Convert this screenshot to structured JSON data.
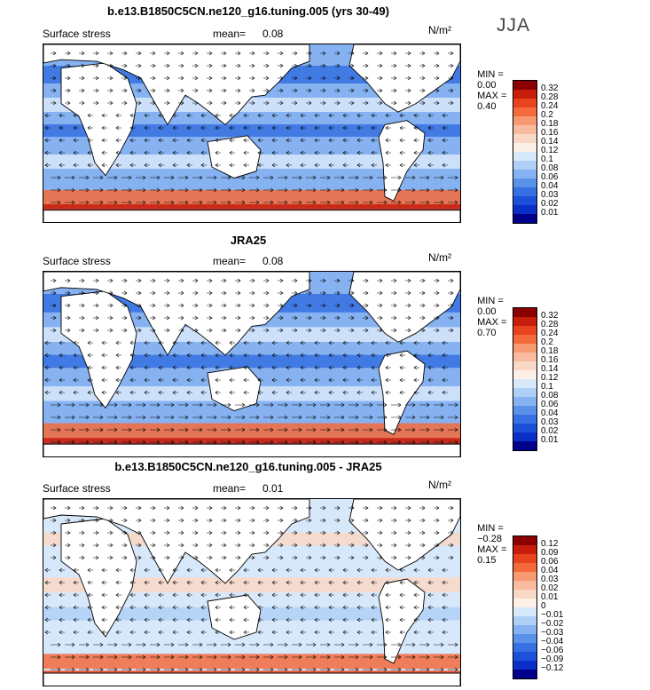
{
  "season": "JJA",
  "units_label": "N/m²",
  "panels": [
    {
      "title": "b.e13.B1850C5CN.ne120_g16.tuning.005 (yrs 30-49)",
      "variable": "Surface stress",
      "mean_label": "mean=",
      "mean_value": "0.08",
      "min_label": "MIN =",
      "min_value": "0.00",
      "max_label": "MAX =",
      "max_value": "0.40",
      "kind": "abs"
    },
    {
      "title": "JRA25",
      "variable": "Surface stress",
      "mean_label": "mean=",
      "mean_value": "0.08",
      "min_label": "MIN =",
      "min_value": "0.00",
      "max_label": "MAX =",
      "max_value": "0.70",
      "kind": "abs"
    },
    {
      "title": "b.e13.B1850C5CN.ne120_g16.tuning.005 - JRA25",
      "variable": "Surface stress",
      "mean_label": "mean=",
      "mean_value": "0.01",
      "min_label": "MIN =",
      "min_value": "−0.28",
      "max_label": "MAX =",
      "max_value": "0.15",
      "kind": "diff"
    }
  ],
  "chart_data": [
    {
      "type": "heatmap",
      "title": "b.e13.B1850C5CN.ne120_g16.tuning.005 (yrs 30-49)",
      "colorbar_levels": [
        "0.32",
        "0.28",
        "0.24",
        "0.2",
        "0.18",
        "0.16",
        "0.14",
        "0.12",
        "0.1",
        "0.08",
        "0.06",
        "0.04",
        "0.03",
        "0.02",
        "0.01"
      ],
      "colorbar_colors": [
        "#8b0000",
        "#c81d0a",
        "#e8431c",
        "#f46a3c",
        "#f79a72",
        "#f8bba0",
        "#fad8c6",
        "#fdf0e6",
        "#d8e8fb",
        "#b0cff7",
        "#86b2f1",
        "#5a92ea",
        "#3670e2",
        "#1d50d8",
        "#0a2fc7",
        "#00008b"
      ],
      "mean": 0.08,
      "min": 0.0,
      "max": 0.4
    },
    {
      "type": "heatmap",
      "title": "JRA25",
      "colorbar_levels": [
        "0.32",
        "0.28",
        "0.24",
        "0.2",
        "0.18",
        "0.16",
        "0.14",
        "0.12",
        "0.1",
        "0.08",
        "0.06",
        "0.04",
        "0.03",
        "0.02",
        "0.01"
      ],
      "colorbar_colors": [
        "#8b0000",
        "#c81d0a",
        "#e8431c",
        "#f46a3c",
        "#f79a72",
        "#f8bba0",
        "#fad8c6",
        "#fdf0e6",
        "#d8e8fb",
        "#b0cff7",
        "#86b2f1",
        "#5a92ea",
        "#3670e2",
        "#1d50d8",
        "#0a2fc7",
        "#00008b"
      ],
      "mean": 0.08,
      "min": 0.0,
      "max": 0.7
    },
    {
      "type": "heatmap",
      "title": "b.e13.B1850C5CN.ne120_g16.tuning.005 - JRA25",
      "colorbar_levels": [
        "0.12",
        "0.09",
        "0.06",
        "0.04",
        "0.03",
        "0.02",
        "0.01",
        "0",
        "−0.01",
        "−0.02",
        "−0.03",
        "−0.04",
        "−0.06",
        "−0.09",
        "−0.12"
      ],
      "colorbar_colors": [
        "#8b0000",
        "#c81d0a",
        "#e8431c",
        "#f46a3c",
        "#f79a72",
        "#f8bba0",
        "#fad8c6",
        "#fdf0e6",
        "#d8e8fb",
        "#b0cff7",
        "#86b2f1",
        "#5a92ea",
        "#3670e2",
        "#1d50d8",
        "#0a2fc7",
        "#00008b"
      ],
      "mean": 0.01,
      "min": -0.28,
      "max": 0.15
    }
  ]
}
